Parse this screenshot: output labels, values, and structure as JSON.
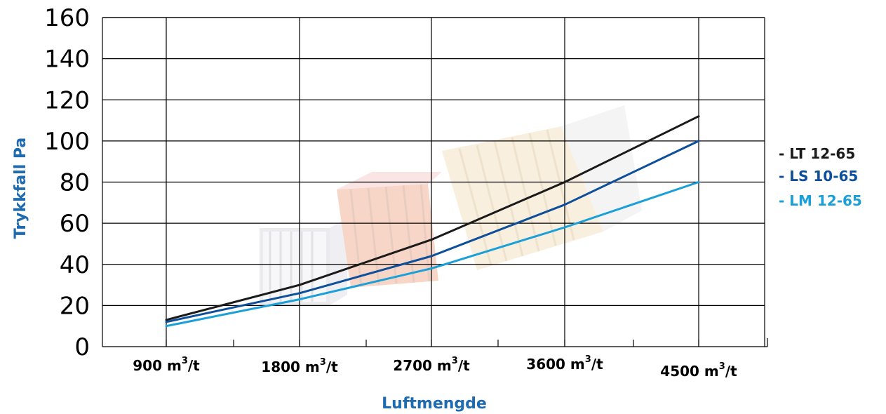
{
  "chart_data": {
    "type": "line",
    "xlabel": "Luftmengde",
    "ylabel": "Trykkfall Pa",
    "ylim": [
      0,
      160
    ],
    "y_ticks": [
      "0",
      "20",
      "40",
      "60",
      "80",
      "100",
      "120",
      "140",
      "160"
    ],
    "categories": [
      {
        "value": "900",
        "unit_base": "m",
        "unit_exp": "3",
        "unit_tail": "/t"
      },
      {
        "value": "1800",
        "unit_base": "m",
        "unit_exp": "3",
        "unit_tail": "/t"
      },
      {
        "value": "2700",
        "unit_base": "m",
        "unit_exp": "3",
        "unit_tail": "/t"
      },
      {
        "value": "3600",
        "unit_base": "m",
        "unit_exp": "3",
        "unit_tail": "/t"
      },
      {
        "value": "4500",
        "unit_base": "m",
        "unit_exp": "3",
        "unit_tail": "/t"
      }
    ],
    "x": [
      900,
      1800,
      2700,
      3600,
      4500
    ],
    "grid": true,
    "legend_position": "right",
    "series": [
      {
        "name": "- LT 12-65",
        "color": "#1a1a1a",
        "values": [
          13,
          30,
          52,
          80,
          112
        ]
      },
      {
        "name": "- LS 10-65",
        "color": "#0d4f9a",
        "values": [
          12,
          26,
          44,
          69,
          100
        ]
      },
      {
        "name": "- LM 12-65",
        "color": "#1a9fd9",
        "values": [
          10,
          23,
          38,
          58,
          80
        ]
      }
    ],
    "colors": {
      "axis_label": "#1f6bb0",
      "grid": "#000000"
    }
  }
}
